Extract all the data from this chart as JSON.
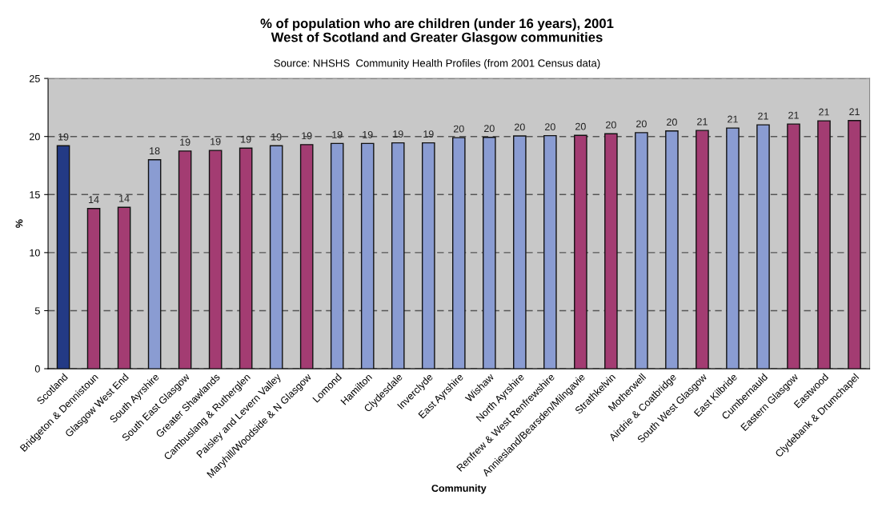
{
  "chart_data": {
    "type": "bar",
    "title": "% of population who are children (under 16 years), 2001\nWest of Scotland and Greater Glasgow communities",
    "annotations": [
      "Source: NHSHS  Community Health Profiles (from 2001 Census data)"
    ],
    "xlabel": "Community",
    "ylabel": "%",
    "categories": [
      "Scotland",
      "Bridgeton & Dennistoun",
      "Glasgow West End",
      "South Ayrshire",
      "South East Glasgow",
      "Greater Shawlands",
      "Cambuslang & Rutherglen",
      "Paisley and Levern Valley",
      "Maryhill/Woodside & N Glasgow",
      "Lomond",
      "Hamilton",
      "Clydesdale",
      "Inverclyde",
      "East Ayrshire",
      "Wishaw",
      "North Ayrshire",
      "Renfrew & West Renfrewshire",
      "Anniesland/Bearsden/Milngavie",
      "Strathkelvin",
      "Motherwell",
      "Airdrie & Coatbridge",
      "South West Glasgow",
      "East Kilbride",
      "Cumbernauld",
      "Eastern Glasgow",
      "Eastwood",
      "Clydebank & Drumchapel"
    ],
    "values": [
      19.2,
      13.8,
      13.9,
      18.0,
      18.75,
      18.8,
      19.0,
      19.2,
      19.3,
      19.4,
      19.4,
      19.45,
      19.45,
      19.9,
      19.93,
      20.05,
      20.07,
      20.1,
      20.24,
      20.33,
      20.48,
      20.52,
      20.73,
      21.0,
      21.07,
      21.35,
      21.37
    ],
    "value_labels": [
      "19",
      "14",
      "14",
      "18",
      "19",
      "19",
      "19",
      "19",
      "19",
      "19",
      "19",
      "19",
      "19",
      "20",
      "20",
      "20",
      "20",
      "20",
      "20",
      "20",
      "20",
      "21",
      "21",
      "21",
      "21",
      "21",
      "21"
    ],
    "colors": [
      "#233a85",
      "#a33c72",
      "#a33c72",
      "#8a9cd2",
      "#a33c72",
      "#a33c72",
      "#a33c72",
      "#8a9cd2",
      "#a33c72",
      "#8a9cd2",
      "#8a9cd2",
      "#8a9cd2",
      "#8a9cd2",
      "#8a9cd2",
      "#8a9cd2",
      "#8a9cd2",
      "#8a9cd2",
      "#a33c72",
      "#a33c72",
      "#8a9cd2",
      "#8a9cd2",
      "#a33c72",
      "#8a9cd2",
      "#8a9cd2",
      "#a33c72",
      "#a33c72",
      "#a33c72"
    ],
    "ylim": [
      0,
      25
    ],
    "yticks": [
      0,
      5,
      10,
      15,
      20,
      25
    ],
    "grid": "y",
    "legend": false
  }
}
